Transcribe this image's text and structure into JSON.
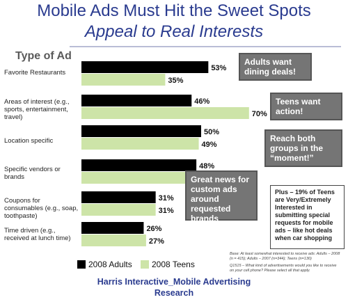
{
  "title": "Mobile Ads Must Hit the Sweet Spots",
  "subtitle": "Appeal to Real Interests",
  "footer_line1": "Harris Interactive_Mobile Advertising",
  "footer_line2": "Research",
  "callouts": {
    "restaurants": "Adults want dining deals!",
    "interest": "Teens want action!",
    "location": "Reach both groups in the “moment!”",
    "vendors": "Great news for custom ads around requested brands",
    "plus": "Plus – 19% of Teens are Very/Extremely Interested in submitting special requests for mobile ads – like hot deals when car shopping"
  },
  "base_note": "Base: At least somewhat interested to receive ads: Adults – 2008 (n = 415); Adults – 2007 (n=344); Teens (n=130)",
  "question_note": "Q1515 – What kind of advertisements would you like to receive on your cell phone? Please select all that apply.",
  "colors": {
    "adults": "#000000",
    "teens": "#cde4a8",
    "callout": "#757575",
    "title": "#2a3b8f"
  },
  "chart_data": {
    "type": "bar",
    "orientation": "horizontal",
    "xlabel": "Type of Ad",
    "categories": [
      "Favorite Restaurants",
      "Areas of interest  (e.g., sports, entertainment, travel)",
      "Location specific",
      "Specific vendors or brands",
      "Coupons for consumables (e.g., soap, toothpaste)",
      "Time driven (e.g., received at lunch time)"
    ],
    "series": [
      {
        "name": "2008 Adults",
        "values": [
          53,
          46,
          50,
          48,
          31,
          26
        ],
        "labels": [
          "53%",
          "46%",
          "50%",
          "48%",
          "31%",
          "26%"
        ]
      },
      {
        "name": "2008 Teens",
        "values": [
          35,
          70,
          49,
          44,
          31,
          27
        ],
        "labels": [
          "35%",
          "70%",
          "49%",
          "44%",
          "31%",
          "27%"
        ]
      }
    ],
    "xlim": [
      0,
      100
    ],
    "legend": "bottom-left",
    "grid": false
  }
}
